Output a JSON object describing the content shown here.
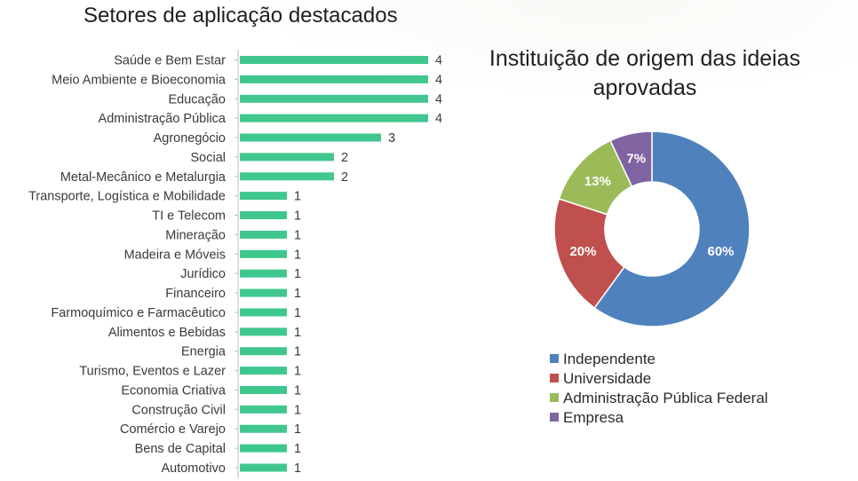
{
  "chart_data": [
    {
      "type": "bar",
      "orientation": "horizontal",
      "title": "Setores de aplicação destacados",
      "categories": [
        "Saúde e Bem Estar",
        "Meio Ambiente e Bioeconomia",
        "Educação",
        "Administração Pública",
        "Agronegócio",
        "Social",
        "Metal-Mecânico e Metalurgia",
        "Transporte, Logística e Mobilidade",
        "TI e Telecom",
        "Mineração",
        "Madeira e Móveis",
        "Jurídico",
        "Financeiro",
        "Farmoquímico e Farmacêutico",
        "Alimentos e Bebidas",
        "Energia",
        "Turismo, Eventos e Lazer",
        "Economia Criativa",
        "Construção Civil",
        "Comércio e Varejo",
        "Bens de Capital",
        "Automotivo"
      ],
      "values": [
        4,
        4,
        4,
        4,
        3,
        2,
        2,
        1,
        1,
        1,
        1,
        1,
        1,
        1,
        1,
        1,
        1,
        1,
        1,
        1,
        1,
        1
      ],
      "xlim": [
        0,
        4
      ],
      "color": "#3fc78f",
      "data_labels": true,
      "grid": false
    },
    {
      "type": "pie",
      "subtype": "donut",
      "title": "Instituição de origem das ideias aprovadas",
      "labels": [
        "Independente",
        "Universidade",
        "Administração Pública Federal",
        "Empresa"
      ],
      "values": [
        60,
        20,
        13,
        7
      ],
      "value_labels": [
        "60%",
        "20%",
        "13%",
        "7%"
      ],
      "colors": [
        "#4f81bd",
        "#c0504d",
        "#9bbb59",
        "#8064a2"
      ],
      "legend_position": "bottom"
    }
  ]
}
